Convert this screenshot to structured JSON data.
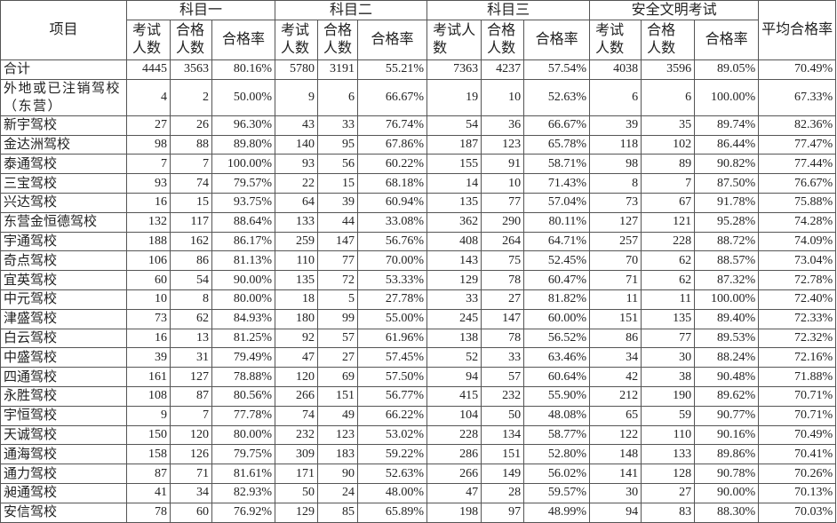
{
  "header": {
    "item": "项目",
    "groups": [
      "科目一",
      "科目二",
      "科目三",
      "安全文明考试"
    ],
    "sub": [
      "考试人数",
      "合格人数",
      "合格率"
    ],
    "avg": "平均合格率"
  },
  "rows": [
    [
      "合计",
      "4445",
      "3563",
      "80.16%",
      "5780",
      "3191",
      "55.21%",
      "7363",
      "4237",
      "57.54%",
      "4038",
      "3596",
      "89.05%",
      "70.49%"
    ],
    [
      "外地或已注销驾校（东营）",
      "4",
      "2",
      "50.00%",
      "9",
      "6",
      "66.67%",
      "19",
      "10",
      "52.63%",
      "6",
      "6",
      "100.00%",
      "67.33%"
    ],
    [
      "新宇驾校",
      "27",
      "26",
      "96.30%",
      "43",
      "33",
      "76.74%",
      "54",
      "36",
      "66.67%",
      "39",
      "35",
      "89.74%",
      "82.36%"
    ],
    [
      "金达洲驾校",
      "98",
      "88",
      "89.80%",
      "140",
      "95",
      "67.86%",
      "187",
      "123",
      "65.78%",
      "118",
      "102",
      "86.44%",
      "77.47%"
    ],
    [
      "泰通驾校",
      "7",
      "7",
      "100.00%",
      "93",
      "56",
      "60.22%",
      "155",
      "91",
      "58.71%",
      "98",
      "89",
      "90.82%",
      "77.44%"
    ],
    [
      "三宝驾校",
      "93",
      "74",
      "79.57%",
      "22",
      "15",
      "68.18%",
      "14",
      "10",
      "71.43%",
      "8",
      "7",
      "87.50%",
      "76.67%"
    ],
    [
      "兴达驾校",
      "16",
      "15",
      "93.75%",
      "64",
      "39",
      "60.94%",
      "135",
      "77",
      "57.04%",
      "73",
      "67",
      "91.78%",
      "75.88%"
    ],
    [
      "东营金恒德驾校",
      "132",
      "117",
      "88.64%",
      "133",
      "44",
      "33.08%",
      "362",
      "290",
      "80.11%",
      "127",
      "121",
      "95.28%",
      "74.28%"
    ],
    [
      "宇通驾校",
      "188",
      "162",
      "86.17%",
      "259",
      "147",
      "56.76%",
      "408",
      "264",
      "64.71%",
      "257",
      "228",
      "88.72%",
      "74.09%"
    ],
    [
      "奇点驾校",
      "106",
      "86",
      "81.13%",
      "110",
      "77",
      "70.00%",
      "143",
      "75",
      "52.45%",
      "70",
      "62",
      "88.57%",
      "73.04%"
    ],
    [
      "宜英驾校",
      "60",
      "54",
      "90.00%",
      "135",
      "72",
      "53.33%",
      "129",
      "78",
      "60.47%",
      "71",
      "62",
      "87.32%",
      "72.78%"
    ],
    [
      "中元驾校",
      "10",
      "8",
      "80.00%",
      "18",
      "5",
      "27.78%",
      "33",
      "27",
      "81.82%",
      "11",
      "11",
      "100.00%",
      "72.40%"
    ],
    [
      "津盛驾校",
      "73",
      "62",
      "84.93%",
      "180",
      "99",
      "55.00%",
      "245",
      "147",
      "60.00%",
      "151",
      "135",
      "89.40%",
      "72.33%"
    ],
    [
      "白云驾校",
      "16",
      "13",
      "81.25%",
      "92",
      "57",
      "61.96%",
      "138",
      "78",
      "56.52%",
      "86",
      "77",
      "89.53%",
      "72.32%"
    ],
    [
      "中盛驾校",
      "39",
      "31",
      "79.49%",
      "47",
      "27",
      "57.45%",
      "52",
      "33",
      "63.46%",
      "34",
      "30",
      "88.24%",
      "72.16%"
    ],
    [
      "四通驾校",
      "161",
      "127",
      "78.88%",
      "120",
      "69",
      "57.50%",
      "94",
      "57",
      "60.64%",
      "42",
      "38",
      "90.48%",
      "71.88%"
    ],
    [
      "永胜驾校",
      "108",
      "87",
      "80.56%",
      "266",
      "151",
      "56.77%",
      "415",
      "232",
      "55.90%",
      "212",
      "190",
      "89.62%",
      "70.71%"
    ],
    [
      "宇恒驾校",
      "9",
      "7",
      "77.78%",
      "74",
      "49",
      "66.22%",
      "104",
      "50",
      "48.08%",
      "65",
      "59",
      "90.77%",
      "70.71%"
    ],
    [
      "天诚驾校",
      "150",
      "120",
      "80.00%",
      "232",
      "123",
      "53.02%",
      "228",
      "134",
      "58.77%",
      "122",
      "110",
      "90.16%",
      "70.49%"
    ],
    [
      "通海驾校",
      "158",
      "126",
      "79.75%",
      "309",
      "183",
      "59.22%",
      "286",
      "151",
      "52.80%",
      "148",
      "133",
      "89.86%",
      "70.41%"
    ],
    [
      "通力驾校",
      "87",
      "71",
      "81.61%",
      "171",
      "90",
      "52.63%",
      "266",
      "149",
      "56.02%",
      "141",
      "128",
      "90.78%",
      "70.26%"
    ],
    [
      "昶通驾校",
      "41",
      "34",
      "82.93%",
      "50",
      "24",
      "48.00%",
      "47",
      "28",
      "59.57%",
      "30",
      "27",
      "90.00%",
      "70.13%"
    ],
    [
      "安信驾校",
      "78",
      "60",
      "76.92%",
      "129",
      "85",
      "65.89%",
      "198",
      "97",
      "48.99%",
      "94",
      "83",
      "88.30%",
      "70.03%"
    ]
  ]
}
